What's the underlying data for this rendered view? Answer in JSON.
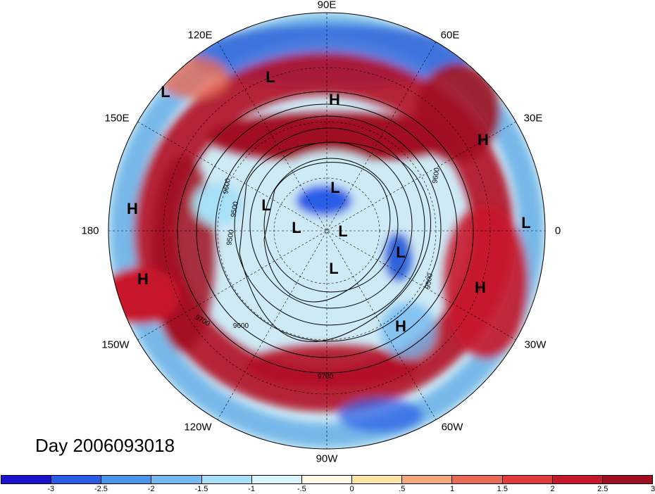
{
  "title": "Day 2006093018",
  "longitude_labels": {
    "lon_90e": "90E",
    "lon_60e": "60E",
    "lon_120e": "120E",
    "lon_150e": "150E",
    "lon_30e": "30E",
    "lon_180": "180",
    "lon_0": "0",
    "lon_150w": "150W",
    "lon_30w": "30W",
    "lon_120w": "120W",
    "lon_60w": "60W",
    "lon_90w": "90W"
  },
  "pressure_centers": [
    {
      "type": "H",
      "label": "H"
    },
    {
      "type": "H",
      "label": "H"
    },
    {
      "type": "H",
      "label": "H"
    },
    {
      "type": "H",
      "label": "H"
    },
    {
      "type": "H",
      "label": "H"
    },
    {
      "type": "H",
      "label": "H"
    },
    {
      "type": "L",
      "label": "L"
    },
    {
      "type": "L",
      "label": "L"
    },
    {
      "type": "L",
      "label": "L"
    },
    {
      "type": "L",
      "label": "L"
    },
    {
      "type": "L",
      "label": "L"
    },
    {
      "type": "L",
      "label": "L"
    },
    {
      "type": "L",
      "label": "L"
    },
    {
      "type": "L",
      "label": "L"
    },
    {
      "type": "L",
      "label": "L"
    }
  ],
  "contour_labels": [
    "9500",
    "9500",
    "9500",
    "9600",
    "9600",
    "9600",
    "9700",
    "9700"
  ],
  "colorbar": {
    "colors": [
      "#1a12cc",
      "#2a5de6",
      "#4a95ea",
      "#74baf0",
      "#a8e0f7",
      "#daf5fb",
      "#fffbe6",
      "#fbe6a6",
      "#f2a97b",
      "#ea6b55",
      "#e23b3b",
      "#c8172b",
      "#a10e21"
    ],
    "tick_labels": [
      "-3",
      "-2.5",
      "-2",
      "-1.5",
      "-1",
      "-.5",
      "0",
      ".5",
      "1",
      "1.5",
      "2",
      "2.5",
      "3"
    ]
  }
}
